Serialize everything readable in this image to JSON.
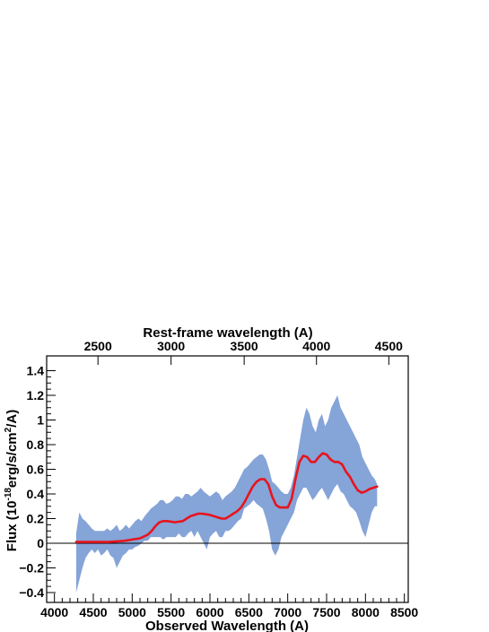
{
  "chart_data": {
    "type": "line",
    "xlabel": "Observed Wavelength (A)",
    "top_xlabel": "Rest-frame wavelength (A)",
    "ylabel_parts": [
      "Flux (10",
      "-18",
      "erg/s/cm",
      "2",
      "/A)"
    ],
    "xlim": [
      3900,
      8550
    ],
    "ylim": [
      -0.48,
      1.52
    ],
    "x_ticks": [
      4000,
      4500,
      5000,
      5500,
      6000,
      6500,
      7000,
      7500,
      8000,
      8500
    ],
    "y_ticks": [
      -0.4,
      -0.2,
      0,
      0.2,
      0.4,
      0.6,
      0.8,
      1,
      1.2,
      1.4
    ],
    "y_tick_labels": [
      "−0.4",
      "−0.2",
      "0",
      "0.2",
      "0.4",
      "0.6",
      "0.8",
      "1",
      "1.2",
      "1.4"
    ],
    "top_ticks": [
      2500,
      3000,
      3500,
      4000,
      4500
    ],
    "top_tick_observed": [
      4560,
      5500,
      6440,
      7370,
      8300
    ],
    "zero_line": 0,
    "colors": {
      "spectrum": "#7e9fd6",
      "smooth": "#e8141c",
      "axes": "#000000"
    },
    "series": [
      {
        "kind": "band",
        "x": [
          4280,
          4320,
          4360,
          4400,
          4440,
          4480,
          4520,
          4560,
          4600,
          4640,
          4680,
          4720,
          4760,
          4800,
          4840,
          4880,
          4920,
          4960,
          5000,
          5040,
          5080,
          5120,
          5160,
          5200,
          5240,
          5280,
          5320,
          5360,
          5400,
          5440,
          5480,
          5520,
          5560,
          5600,
          5640,
          5680,
          5720,
          5760,
          5800,
          5840,
          5880,
          5920,
          5960,
          6000,
          6040,
          6080,
          6120,
          6160,
          6200,
          6240,
          6280,
          6320,
          6360,
          6400,
          6440,
          6480,
          6520,
          6560,
          6600,
          6640,
          6680,
          6720,
          6760,
          6800,
          6840,
          6880,
          6920,
          6960,
          7000,
          7040,
          7080,
          7120,
          7160,
          7200,
          7240,
          7280,
          7320,
          7360,
          7400,
          7440,
          7480,
          7520,
          7560,
          7600,
          7640,
          7680,
          7720,
          7760,
          7800,
          7840,
          7880,
          7920,
          7960,
          8000,
          8040,
          8080,
          8120,
          8150
        ],
        "upper": [
          0.08,
          0.25,
          0.2,
          0.18,
          0.15,
          0.12,
          0.1,
          0.1,
          0.1,
          0.1,
          0.12,
          0.1,
          0.12,
          0.15,
          0.1,
          0.12,
          0.15,
          0.12,
          0.15,
          0.18,
          0.2,
          0.18,
          0.22,
          0.25,
          0.28,
          0.3,
          0.32,
          0.35,
          0.35,
          0.32,
          0.33,
          0.35,
          0.38,
          0.38,
          0.36,
          0.4,
          0.4,
          0.38,
          0.4,
          0.42,
          0.45,
          0.42,
          0.4,
          0.38,
          0.4,
          0.42,
          0.4,
          0.35,
          0.38,
          0.4,
          0.42,
          0.45,
          0.5,
          0.55,
          0.6,
          0.62,
          0.65,
          0.68,
          0.7,
          0.72,
          0.72,
          0.68,
          0.6,
          0.5,
          0.48,
          0.45,
          0.42,
          0.4,
          0.4,
          0.45,
          0.55,
          0.7,
          0.85,
          1.0,
          1.1,
          1.05,
          0.95,
          0.9,
          1.0,
          1.05,
          0.95,
          1.0,
          1.1,
          1.15,
          1.2,
          1.1,
          1.05,
          1.0,
          0.95,
          0.9,
          0.85,
          0.8,
          0.7,
          0.65,
          0.6,
          0.55,
          0.52,
          0.48
        ],
        "lower": [
          -0.4,
          -0.3,
          -0.2,
          -0.12,
          -0.08,
          -0.05,
          -0.08,
          -0.05,
          -0.1,
          -0.08,
          -0.05,
          -0.1,
          -0.12,
          -0.2,
          -0.15,
          -0.1,
          -0.08,
          -0.05,
          -0.05,
          -0.03,
          -0.02,
          0.0,
          0.02,
          0.02,
          0.05,
          0.05,
          0.05,
          0.05,
          0.03,
          0.05,
          0.05,
          0.05,
          0.05,
          0.08,
          0.05,
          0.05,
          0.08,
          0.1,
          0.05,
          0.1,
          0.05,
          0.0,
          -0.05,
          0.05,
          0.08,
          0.1,
          0.05,
          0.05,
          0.1,
          0.1,
          0.12,
          0.15,
          0.18,
          0.2,
          0.28,
          0.3,
          0.32,
          0.35,
          0.32,
          0.3,
          0.28,
          0.2,
          0.1,
          -0.05,
          -0.1,
          -0.05,
          0.05,
          0.1,
          0.15,
          0.2,
          0.25,
          0.35,
          0.4,
          0.45,
          0.45,
          0.4,
          0.35,
          0.38,
          0.42,
          0.45,
          0.4,
          0.35,
          0.4,
          0.45,
          0.48,
          0.42,
          0.4,
          0.35,
          0.3,
          0.28,
          0.25,
          0.18,
          0.1,
          0.05,
          0.15,
          0.25,
          0.3,
          0.3
        ]
      },
      {
        "kind": "line",
        "x": [
          4280,
          4400,
          4500,
          4600,
          4700,
          4800,
          4900,
          5000,
          5100,
          5200,
          5250,
          5300,
          5350,
          5400,
          5450,
          5500,
          5550,
          5600,
          5650,
          5700,
          5750,
          5800,
          5850,
          5900,
          5950,
          6000,
          6050,
          6100,
          6150,
          6200,
          6250,
          6300,
          6350,
          6400,
          6450,
          6500,
          6550,
          6600,
          6650,
          6700,
          6750,
          6800,
          6850,
          6900,
          6950,
          7000,
          7050,
          7100,
          7150,
          7200,
          7250,
          7300,
          7350,
          7400,
          7450,
          7500,
          7550,
          7600,
          7650,
          7700,
          7750,
          7800,
          7850,
          7900,
          7950,
          8000,
          8050,
          8100,
          8150
        ],
        "y": [
          0.01,
          0.01,
          0.01,
          0.01,
          0.01,
          0.015,
          0.02,
          0.03,
          0.04,
          0.07,
          0.1,
          0.14,
          0.17,
          0.18,
          0.18,
          0.175,
          0.17,
          0.175,
          0.18,
          0.2,
          0.22,
          0.23,
          0.24,
          0.24,
          0.235,
          0.23,
          0.22,
          0.21,
          0.2,
          0.2,
          0.22,
          0.24,
          0.26,
          0.29,
          0.34,
          0.4,
          0.46,
          0.5,
          0.52,
          0.52,
          0.48,
          0.38,
          0.31,
          0.29,
          0.29,
          0.29,
          0.36,
          0.52,
          0.66,
          0.71,
          0.7,
          0.66,
          0.66,
          0.7,
          0.73,
          0.72,
          0.68,
          0.66,
          0.66,
          0.64,
          0.58,
          0.54,
          0.48,
          0.43,
          0.41,
          0.42,
          0.44,
          0.45,
          0.46
        ]
      }
    ]
  }
}
